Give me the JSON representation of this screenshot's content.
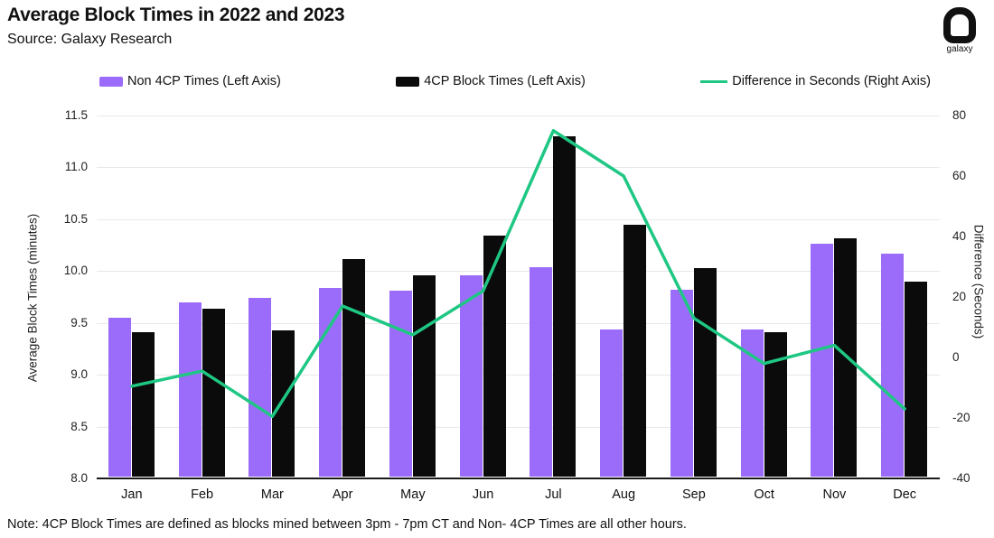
{
  "header": {
    "title": "Average Block Times in 2022 and 2023",
    "source": "Source: Galaxy Research",
    "logo_text": "galaxy"
  },
  "colors": {
    "non4cp_purple": "#9b6bfa",
    "cp4_black": "#0b0b0b",
    "difference_green": "#1ec783",
    "gridline": "#e8e8e8",
    "axis_line": "#1a1a1a"
  },
  "legend": [
    {
      "label": "Non 4CP Times (Left Axis)",
      "type": "bar",
      "color": "#9b6bfa"
    },
    {
      "label": "4CP Block Times (Left Axis)",
      "type": "bar",
      "color": "#0b0b0b"
    },
    {
      "label": "Difference in Seconds (Right Axis)",
      "type": "line",
      "color": "#1ec783"
    }
  ],
  "chart_data": {
    "type": "bar",
    "subtype": "grouped bars + line overlay",
    "title": "Average Block Times in 2022 and 2023",
    "categories": [
      "Jan",
      "Feb",
      "Mar",
      "Apr",
      "May",
      "Jun",
      "Jul",
      "Aug",
      "Sep",
      "Oct",
      "Nov",
      "Dec"
    ],
    "series": [
      {
        "name": "Non 4CP Times (Left Axis)",
        "type": "bar",
        "axis": "left",
        "color": "#9b6bfa",
        "values": [
          9.55,
          9.7,
          9.74,
          9.84,
          9.81,
          9.96,
          10.04,
          9.44,
          9.82,
          9.44,
          10.26,
          10.17
        ]
      },
      {
        "name": "4CP Block Times (Left Axis)",
        "type": "bar",
        "axis": "left",
        "color": "#0b0b0b",
        "values": [
          9.41,
          9.64,
          9.43,
          10.12,
          9.96,
          10.34,
          11.3,
          10.45,
          10.03,
          9.41,
          10.32,
          9.9
        ]
      },
      {
        "name": "Difference in Seconds (Right Axis)",
        "type": "line",
        "axis": "right",
        "color": "#1ec783",
        "values": [
          -9.5,
          -4.5,
          -19.5,
          17,
          7.5,
          22,
          75,
          60,
          13,
          -2,
          4,
          -17
        ]
      }
    ],
    "left_axis": {
      "label": "Average Block Times (minutes)",
      "min": 8.0,
      "max": 11.5,
      "ticks": [
        11.5,
        11.0,
        10.5,
        10.0,
        9.5,
        9.0,
        8.5,
        8.0
      ],
      "tick_format": "fixed1"
    },
    "right_axis": {
      "label": "Difference (Seconds)",
      "min": -40,
      "max": 80,
      "ticks": [
        80,
        60,
        40,
        20,
        0,
        -20,
        -40
      ]
    },
    "grid": true,
    "legend_position": "top"
  },
  "note": "Note: 4CP Block Times are defined as blocks mined between 3pm - 7pm CT and Non- 4CP Times are all other hours."
}
